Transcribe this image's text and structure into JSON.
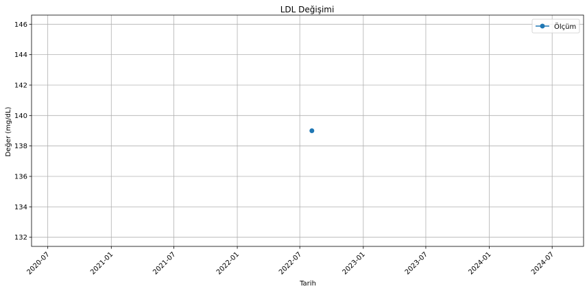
{
  "chart_data": {
    "type": "line",
    "title": "LDL Değişimi",
    "xlabel": "Tarih",
    "ylabel": "Değer (mg/dL)",
    "x_type": "date",
    "xlim": [
      "2020-05-15",
      "2024-09-30"
    ],
    "ylim": [
      131.4,
      146.6
    ],
    "x_ticks": [
      "2020-07",
      "2021-01",
      "2021-07",
      "2022-01",
      "2022-07",
      "2023-01",
      "2023-07",
      "2024-01",
      "2024-07"
    ],
    "y_ticks": [
      132,
      134,
      136,
      138,
      140,
      142,
      144,
      146
    ],
    "grid": true,
    "legend_position": "top-right",
    "series": [
      {
        "name": "Ölçüm",
        "color": "#1f77b4",
        "marker": "circle",
        "x": [
          "2022-08-05"
        ],
        "y": [
          139
        ]
      }
    ]
  }
}
